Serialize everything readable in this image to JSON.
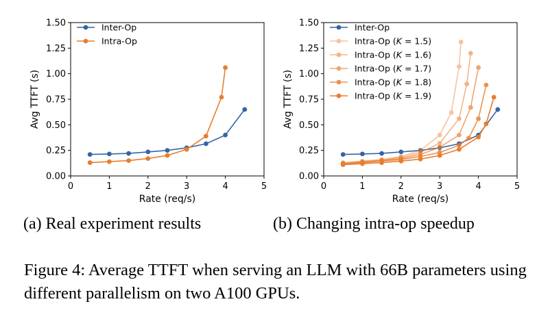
{
  "chart_data": [
    {
      "type": "line",
      "title": "",
      "xlabel": "Rate (req/s)",
      "ylabel": "Avg TTFT (s)",
      "xlim": [
        0,
        5
      ],
      "ylim": [
        0,
        1.5
      ],
      "xticks": [
        0,
        1,
        2,
        3,
        4,
        5
      ],
      "xtick_labels": [
        "0",
        "1",
        "2",
        "3",
        "4",
        "5"
      ],
      "yticks": [
        0,
        0.25,
        0.5,
        0.75,
        1.0,
        1.25,
        1.5
      ],
      "ytick_labels": [
        "0.00",
        "0.25",
        "0.50",
        "0.75",
        "1.00",
        "1.25",
        "1.50"
      ],
      "grid": false,
      "legend": "top-left",
      "series": [
        {
          "name": "Inter-Op",
          "color": "#3465a4",
          "x": [
            0.5,
            1.0,
            1.5,
            2.0,
            2.5,
            3.0,
            3.5,
            4.0,
            4.5
          ],
          "y": [
            0.21,
            0.215,
            0.22,
            0.235,
            0.25,
            0.275,
            0.315,
            0.4,
            0.65
          ]
        },
        {
          "name": "Intra-Op",
          "color": "#e87d2e",
          "x": [
            0.5,
            1.0,
            1.5,
            2.0,
            2.5,
            3.0,
            3.5,
            3.9,
            4.0
          ],
          "y": [
            0.13,
            0.14,
            0.15,
            0.17,
            0.2,
            0.26,
            0.39,
            0.77,
            1.06
          ]
        }
      ]
    },
    {
      "type": "line",
      "title": "",
      "xlabel": "Rate (req/s)",
      "ylabel": "Avg TTFT (s)",
      "xlim": [
        0,
        5
      ],
      "ylim": [
        0,
        1.5
      ],
      "xticks": [
        0,
        1,
        2,
        3,
        4,
        5
      ],
      "xtick_labels": [
        "0",
        "1",
        "2",
        "3",
        "4",
        "5"
      ],
      "yticks": [
        0,
        0.25,
        0.5,
        0.75,
        1.0,
        1.25,
        1.5
      ],
      "ytick_labels": [
        "0.00",
        "0.25",
        "0.50",
        "0.75",
        "1.00",
        "1.25",
        "1.50"
      ],
      "grid": false,
      "legend": "top-left",
      "series": [
        {
          "name": "Inter-Op",
          "color": "#3465a4",
          "opacity": 1.0,
          "x": [
            0.5,
            1.0,
            1.5,
            2.0,
            2.5,
            3.0,
            3.5,
            4.0,
            4.5
          ],
          "y": [
            0.21,
            0.215,
            0.22,
            0.235,
            0.25,
            0.275,
            0.315,
            0.4,
            0.65
          ]
        },
        {
          "name": "Intra-Op (K = 1.5)",
          "name_prefix": "Intra-Op (",
          "name_var": "K",
          "name_suffix": " = 1.5)",
          "color": "#e87d2e",
          "opacity": 0.45,
          "x": [
            0.5,
            1.0,
            1.5,
            2.0,
            2.5,
            3.0,
            3.3,
            3.5,
            3.55
          ],
          "y": [
            0.13,
            0.145,
            0.16,
            0.19,
            0.25,
            0.4,
            0.62,
            1.07,
            1.31
          ]
        },
        {
          "name": "Intra-Op (K = 1.6)",
          "name_prefix": "Intra-Op (",
          "name_var": "K",
          "name_suffix": " = 1.6)",
          "color": "#e87d2e",
          "opacity": 0.57,
          "x": [
            0.5,
            1.0,
            1.5,
            2.0,
            2.5,
            3.0,
            3.5,
            3.7,
            3.8
          ],
          "y": [
            0.125,
            0.14,
            0.155,
            0.18,
            0.23,
            0.32,
            0.56,
            0.9,
            1.2
          ]
        },
        {
          "name": "Intra-Op (K = 1.7)",
          "name_prefix": "Intra-Op (",
          "name_var": "K",
          "name_suffix": " = 1.7)",
          "color": "#e87d2e",
          "opacity": 0.69,
          "x": [
            0.5,
            1.0,
            1.5,
            2.0,
            2.5,
            3.0,
            3.5,
            3.8,
            4.0
          ],
          "y": [
            0.12,
            0.135,
            0.15,
            0.17,
            0.21,
            0.28,
            0.4,
            0.67,
            1.06
          ]
        },
        {
          "name": "Intra-Op (K = 1.8)",
          "name_prefix": "Intra-Op (",
          "name_var": "K",
          "name_suffix": " = 1.8)",
          "color": "#e87d2e",
          "opacity": 0.83,
          "x": [
            0.5,
            1.0,
            1.5,
            2.0,
            2.5,
            3.0,
            3.5,
            3.75,
            4.0,
            4.2
          ],
          "y": [
            0.115,
            0.13,
            0.145,
            0.16,
            0.19,
            0.23,
            0.3,
            0.37,
            0.56,
            0.89
          ]
        },
        {
          "name": "Intra-Op (K = 1.9)",
          "name_prefix": "Intra-Op (",
          "name_var": "K",
          "name_suffix": " = 1.9)",
          "color": "#e87d2e",
          "opacity": 1.0,
          "x": [
            0.5,
            1.0,
            1.5,
            2.0,
            2.5,
            3.0,
            3.5,
            4.0,
            4.2,
            4.4
          ],
          "y": [
            0.11,
            0.12,
            0.13,
            0.145,
            0.165,
            0.2,
            0.26,
            0.38,
            0.51,
            0.77
          ]
        }
      ]
    }
  ],
  "captions": {
    "a": "(a) Real experiment results",
    "b": "(b) Changing intra-op speedup",
    "figure": "Figure 4: Average TTFT when serving an LLM with 66B parameters using different parallelism on two A100 GPUs."
  }
}
